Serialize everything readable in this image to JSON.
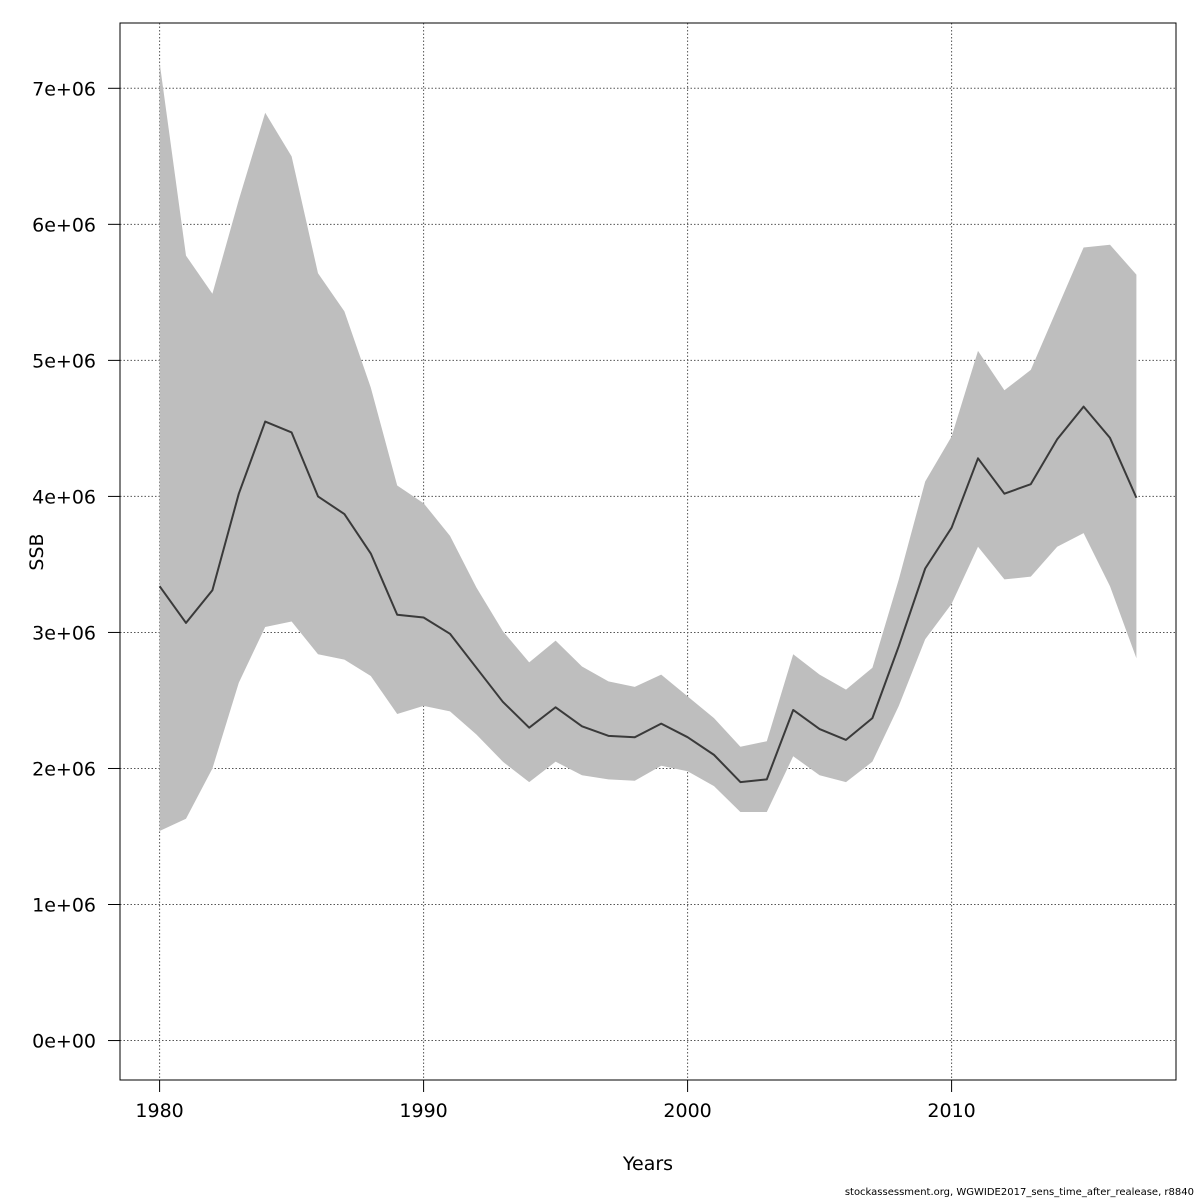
{
  "chart_data": {
    "type": "area",
    "title": "",
    "xlabel": "Years",
    "ylabel": "SSB",
    "xlim": [
      1978.5,
      2018.5
    ],
    "ylim": [
      -290000,
      7480000
    ],
    "grid": true,
    "x_ticks": [
      1980,
      1990,
      2000,
      2010
    ],
    "x_tick_labels": [
      "1980",
      "1990",
      "2000",
      "2010"
    ],
    "y_ticks": [
      0,
      1000000,
      2000000,
      3000000,
      4000000,
      5000000,
      6000000,
      7000000
    ],
    "y_tick_labels": [
      "0e+00",
      "1e+06",
      "2e+06",
      "3e+06",
      "4e+06",
      "5e+06",
      "6e+06",
      "7e+06"
    ],
    "x": [
      1980,
      1981,
      1982,
      1983,
      1984,
      1985,
      1986,
      1987,
      1988,
      1989,
      1990,
      1991,
      1992,
      1993,
      1994,
      1995,
      1996,
      1997,
      1998,
      1999,
      2000,
      2001,
      2002,
      2003,
      2004,
      2005,
      2006,
      2007,
      2008,
      2009,
      2010,
      2011,
      2012,
      2013,
      2014,
      2015,
      2016,
      2017
    ],
    "series": [
      {
        "type": "line",
        "color": "#3a3a3a",
        "values": [
          3340000,
          3070000,
          3310000,
          4020000,
          4550000,
          4470000,
          4000000,
          3870000,
          3580000,
          3130000,
          3110000,
          2990000,
          2740000,
          2490000,
          2300000,
          2450000,
          2310000,
          2240000,
          2230000,
          2330000,
          2230000,
          2100000,
          1900000,
          1920000,
          2430000,
          2290000,
          2210000,
          2370000,
          2900000,
          3470000,
          3770000,
          4280000,
          4020000,
          4090000,
          4420000,
          4660000,
          4430000,
          3990000
        ]
      },
      {
        "type": "band",
        "color": "#bebebe",
        "lower": [
          1540000,
          1630000,
          2000000,
          2630000,
          3040000,
          3080000,
          2840000,
          2800000,
          2680000,
          2400000,
          2460000,
          2420000,
          2250000,
          2050000,
          1900000,
          2050000,
          1950000,
          1920000,
          1910000,
          2020000,
          1980000,
          1870000,
          1680000,
          1680000,
          2090000,
          1950000,
          1900000,
          2050000,
          2460000,
          2950000,
          3210000,
          3630000,
          3390000,
          3410000,
          3630000,
          3730000,
          3340000,
          2810000
        ],
        "upper": [
          7190000,
          5770000,
          5490000,
          6180000,
          6820000,
          6500000,
          5640000,
          5360000,
          4800000,
          4080000,
          3950000,
          3710000,
          3330000,
          3010000,
          2780000,
          2940000,
          2750000,
          2640000,
          2600000,
          2690000,
          2530000,
          2370000,
          2160000,
          2200000,
          2840000,
          2690000,
          2580000,
          2740000,
          3390000,
          4110000,
          4440000,
          5070000,
          4780000,
          4930000,
          5380000,
          5830000,
          5850000,
          5630000
        ]
      }
    ]
  },
  "footnote": "stockassessment.org, WGWIDE2017_sens_time_after_realease, r8840"
}
